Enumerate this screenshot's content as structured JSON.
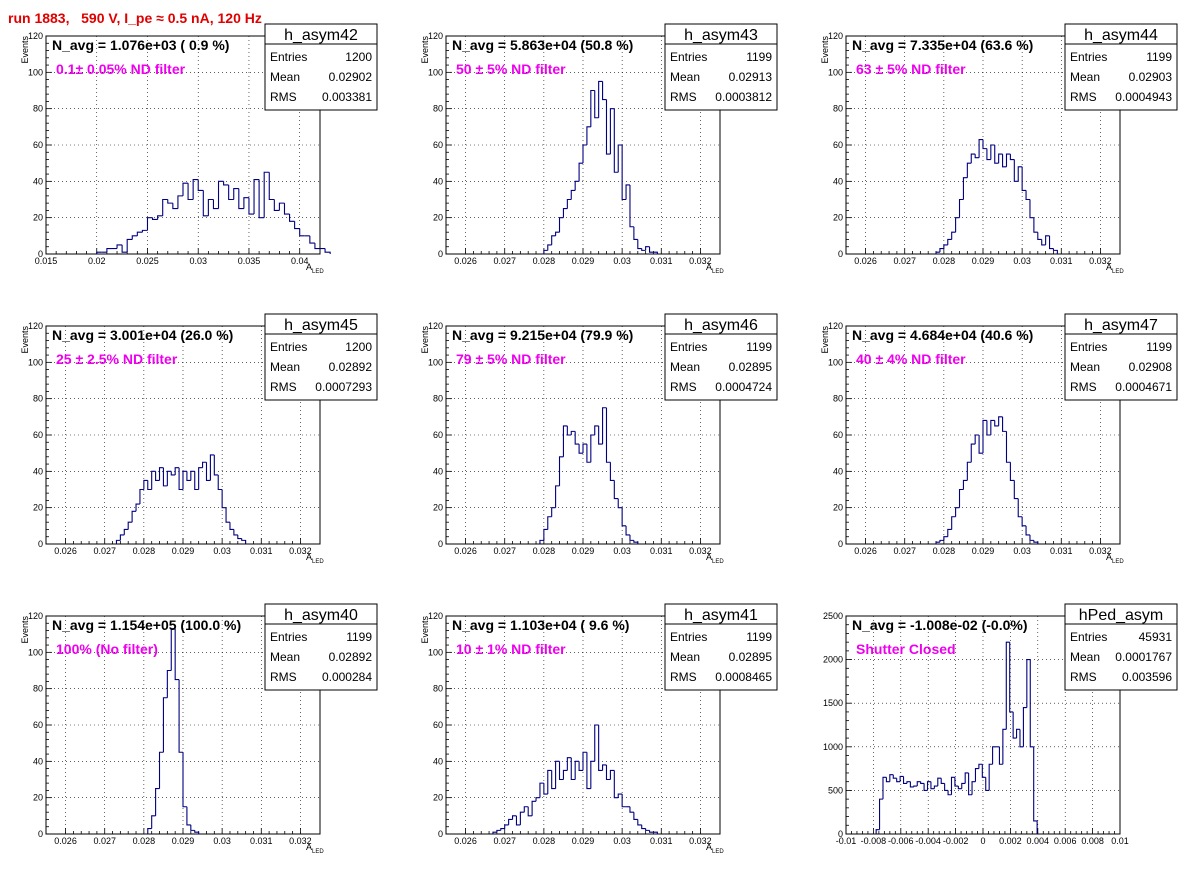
{
  "title": "run 1883,   590 V, I_pe ≈ 0.5 nA, 120 Hz",
  "colors": {
    "title": "#e00000",
    "filter_text": "#ee00ee",
    "histogram": "#000080",
    "grid": "#000000"
  },
  "chart_data": [
    {
      "type": "bar",
      "name": "h_asym42",
      "stats": {
        "entries": "1200",
        "mean": "0.02902",
        "rms": "0.003381"
      },
      "navg": "N_avg = 1.076e+03 ( 0.9 %)",
      "filter": "0.1± 0.05% ND filter",
      "xlim": [
        0.015,
        0.042
      ],
      "ylim": [
        0,
        120
      ],
      "xticks": [
        0.015,
        0.02,
        0.025,
        0.03,
        0.035,
        0.04
      ],
      "xtick_labels": [
        "0.015",
        "0.02",
        "0.025",
        "0.03",
        "0.035",
        "0.04"
      ],
      "yticks": [
        0,
        20,
        40,
        60,
        80,
        100,
        120
      ],
      "xlabel": "A",
      "xlabel_sub": "LED",
      "ylabel": "Events",
      "bin_start": 0.02,
      "bin_width": 0.0005,
      "values": [
        1,
        1,
        3,
        3,
        5,
        1,
        8,
        10,
        12,
        13,
        20,
        19,
        21,
        30,
        28,
        25,
        32,
        39,
        30,
        41,
        35,
        21,
        30,
        25,
        40,
        38,
        30,
        36,
        25,
        31,
        22,
        41,
        20,
        45,
        30,
        24,
        28,
        22,
        18,
        14,
        10,
        10,
        6,
        3,
        3,
        1
      ]
    },
    {
      "type": "bar",
      "name": "h_asym43",
      "stats": {
        "entries": "1199",
        "mean": "0.02913",
        "rms": "0.0003812"
      },
      "navg": "N_avg = 5.863e+04 (50.8 %)",
      "filter": "50 ± 5% ND filter",
      "xlim": [
        0.0255,
        0.0325
      ],
      "ylim": [
        0,
        120
      ],
      "xticks": [
        0.026,
        0.027,
        0.028,
        0.029,
        0.03,
        0.031,
        0.032
      ],
      "xtick_labels": [
        "0.026",
        "0.027",
        "0.028",
        "0.029",
        "0.03",
        "0.031",
        "0.032"
      ],
      "yticks": [
        0,
        20,
        40,
        60,
        80,
        100,
        120
      ],
      "xlabel": "A",
      "xlabel_sub": "LED",
      "ylabel": "Events",
      "bin_start": 0.028,
      "bin_width": 0.0001,
      "values": [
        2,
        5,
        10,
        12,
        20,
        25,
        30,
        35,
        40,
        50,
        60,
        70,
        90,
        75,
        95,
        85,
        55,
        80,
        45,
        60,
        30,
        38,
        15,
        8,
        3,
        2,
        4,
        1,
        1
      ]
    },
    {
      "type": "bar",
      "name": "h_asym44",
      "stats": {
        "entries": "1199",
        "mean": "0.02903",
        "rms": "0.0004943"
      },
      "navg": "N_avg = 7.335e+04 (63.6 %)",
      "filter": "63 ± 5% ND filter",
      "xlim": [
        0.0255,
        0.0325
      ],
      "ylim": [
        0,
        120
      ],
      "xticks": [
        0.026,
        0.027,
        0.028,
        0.029,
        0.03,
        0.031,
        0.032
      ],
      "xtick_labels": [
        "0.026",
        "0.027",
        "0.028",
        "0.029",
        "0.03",
        "0.031",
        "0.032"
      ],
      "yticks": [
        0,
        20,
        40,
        60,
        80,
        100,
        120
      ],
      "xlabel": "A",
      "xlabel_sub": "LED",
      "ylabel": "Events",
      "bin_start": 0.0278,
      "bin_width": 0.0001,
      "values": [
        1,
        3,
        5,
        8,
        12,
        20,
        30,
        42,
        50,
        55,
        53,
        63,
        58,
        52,
        60,
        50,
        55,
        48,
        55,
        52,
        40,
        48,
        35,
        30,
        20,
        12,
        8,
        5,
        10,
        3,
        2
      ]
    },
    {
      "type": "bar",
      "name": "h_asym45",
      "stats": {
        "entries": "1200",
        "mean": "0.02892",
        "rms": "0.0007293"
      },
      "navg": "N_avg = 3.001e+04 (26.0 %)",
      "filter": "25 ± 2.5% ND filter",
      "xlim": [
        0.0255,
        0.0325
      ],
      "ylim": [
        0,
        120
      ],
      "xticks": [
        0.026,
        0.027,
        0.028,
        0.029,
        0.03,
        0.031,
        0.032
      ],
      "xtick_labels": [
        "0.026",
        "0.027",
        "0.028",
        "0.029",
        "0.03",
        "0.031",
        "0.032"
      ],
      "yticks": [
        0,
        20,
        40,
        60,
        80,
        100,
        120
      ],
      "xlabel": "A",
      "xlabel_sub": "LED",
      "ylabel": "Events",
      "bin_start": 0.0273,
      "bin_width": 0.0001,
      "values": [
        2,
        5,
        8,
        12,
        18,
        22,
        30,
        35,
        30,
        40,
        35,
        42,
        32,
        40,
        38,
        42,
        30,
        40,
        35,
        40,
        30,
        42,
        45,
        35,
        49,
        38,
        30,
        20,
        12,
        8,
        5,
        3,
        2
      ]
    },
    {
      "type": "bar",
      "name": "h_asym46",
      "stats": {
        "entries": "1199",
        "mean": "0.02895",
        "rms": "0.0004724"
      },
      "navg": "N_avg = 9.215e+04 (79.9 %)",
      "filter": "79 ± 5% ND filter",
      "xlim": [
        0.0255,
        0.0325
      ],
      "ylim": [
        0,
        120
      ],
      "xticks": [
        0.026,
        0.027,
        0.028,
        0.029,
        0.03,
        0.031,
        0.032
      ],
      "xtick_labels": [
        "0.026",
        "0.027",
        "0.028",
        "0.029",
        "0.03",
        "0.031",
        "0.032"
      ],
      "yticks": [
        0,
        20,
        40,
        60,
        80,
        100,
        120
      ],
      "xlabel": "A",
      "xlabel_sub": "LED",
      "ylabel": "Events",
      "bin_start": 0.0279,
      "bin_width": 0.0001,
      "values": [
        2,
        8,
        15,
        20,
        32,
        48,
        65,
        60,
        62,
        55,
        50,
        55,
        45,
        60,
        65,
        55,
        75,
        45,
        35,
        25,
        20,
        10,
        5,
        2,
        1
      ]
    },
    {
      "type": "bar",
      "name": "h_asym47",
      "stats": {
        "entries": "1199",
        "mean": "0.02908",
        "rms": "0.0004671"
      },
      "navg": "N_avg = 4.684e+04 (40.6 %)",
      "filter": "40 ± 4% ND filter",
      "xlim": [
        0.0255,
        0.0325
      ],
      "ylim": [
        0,
        120
      ],
      "xticks": [
        0.026,
        0.027,
        0.028,
        0.029,
        0.03,
        0.031,
        0.032
      ],
      "xtick_labels": [
        "0.026",
        "0.027",
        "0.028",
        "0.029",
        "0.03",
        "0.031",
        "0.032"
      ],
      "yticks": [
        0,
        20,
        40,
        60,
        80,
        100,
        120
      ],
      "xlabel": "A",
      "xlabel_sub": "LED",
      "ylabel": "Events",
      "bin_start": 0.0278,
      "bin_width": 0.0001,
      "values": [
        1,
        2,
        4,
        8,
        15,
        20,
        30,
        35,
        45,
        55,
        60,
        50,
        68,
        60,
        68,
        65,
        70,
        62,
        45,
        35,
        25,
        15,
        10,
        5,
        2,
        1
      ]
    },
    {
      "type": "bar",
      "name": "h_asym40",
      "stats": {
        "entries": "1199",
        "mean": "0.02892",
        "rms": "0.000284"
      },
      "navg": "N_avg = 1.154e+05 (100.0 %)",
      "filter": "100% (No filter)",
      "xlim": [
        0.0255,
        0.0325
      ],
      "ylim": [
        0,
        120
      ],
      "xticks": [
        0.026,
        0.027,
        0.028,
        0.029,
        0.03,
        0.031,
        0.032
      ],
      "xtick_labels": [
        "0.026",
        "0.027",
        "0.028",
        "0.029",
        "0.03",
        "0.031",
        "0.032"
      ],
      "yticks": [
        0,
        20,
        40,
        60,
        80,
        100,
        120
      ],
      "xlabel": "A",
      "xlabel_sub": "LED",
      "ylabel": "Events",
      "bin_start": 0.0281,
      "bin_width": 0.0001,
      "values": [
        3,
        10,
        25,
        45,
        75,
        90,
        113,
        85,
        45,
        15,
        5,
        2,
        1
      ]
    },
    {
      "type": "bar",
      "name": "h_asym41",
      "stats": {
        "entries": "1199",
        "mean": "0.02895",
        "rms": "0.0008465"
      },
      "navg": "N_avg = 1.103e+04 ( 9.6 %)",
      "filter": "10 ± 1% ND filter",
      "xlim": [
        0.0255,
        0.0325
      ],
      "ylim": [
        0,
        120
      ],
      "xticks": [
        0.026,
        0.027,
        0.028,
        0.029,
        0.03,
        0.031,
        0.032
      ],
      "xtick_labels": [
        "0.026",
        "0.027",
        "0.028",
        "0.029",
        "0.03",
        "0.031",
        "0.032"
      ],
      "yticks": [
        0,
        20,
        40,
        60,
        80,
        100,
        120
      ],
      "xlabel": "A",
      "xlabel_sub": "LED",
      "ylabel": "Events",
      "bin_start": 0.0267,
      "bin_width": 0.0001,
      "values": [
        1,
        2,
        3,
        5,
        8,
        10,
        5,
        12,
        15,
        10,
        18,
        20,
        28,
        22,
        35,
        25,
        40,
        30,
        35,
        42,
        30,
        40,
        35,
        45,
        25,
        40,
        60,
        35,
        38,
        30,
        35,
        20,
        22,
        15,
        15,
        12,
        8,
        5,
        3,
        2,
        1,
        1
      ]
    },
    {
      "type": "bar",
      "name": "hPed_asym",
      "stats": {
        "entries": "45931",
        "mean": "0.0001767",
        "rms": "0.003596"
      },
      "navg": "N_avg = -1.008e-02 (-0.0%)",
      "filter": "Shutter Closed",
      "xlim": [
        -0.01,
        0.01
      ],
      "ylim": [
        0,
        2500
      ],
      "xticks": [
        -0.01,
        -0.008,
        -0.006,
        -0.004,
        -0.002,
        0,
        0.002,
        0.004,
        0.006,
        0.008,
        0.01
      ],
      "xtick_labels": [
        "-0.01",
        "-0.008",
        "-0.006",
        "-0.004",
        "-0.002",
        "0",
        "0.002",
        "0.004",
        "0.006",
        "0.008",
        "0.01"
      ],
      "yticks": [
        0,
        500,
        1000,
        1500,
        2000,
        2500
      ],
      "xlabel": "",
      "xlabel_sub": "",
      "ylabel": "",
      "bin_start": -0.0078,
      "bin_width": 0.00025,
      "values": [
        50,
        400,
        650,
        600,
        680,
        640,
        600,
        660,
        580,
        600,
        540,
        550,
        600,
        580,
        500,
        600,
        520,
        550,
        640,
        580,
        500,
        450,
        650,
        550,
        520,
        580,
        700,
        450,
        600,
        750,
        800,
        650,
        500,
        800,
        1000,
        1000,
        800,
        1200,
        2200,
        1400,
        1100,
        1200,
        1000,
        1450,
        2000,
        1000,
        150
      ]
    }
  ]
}
